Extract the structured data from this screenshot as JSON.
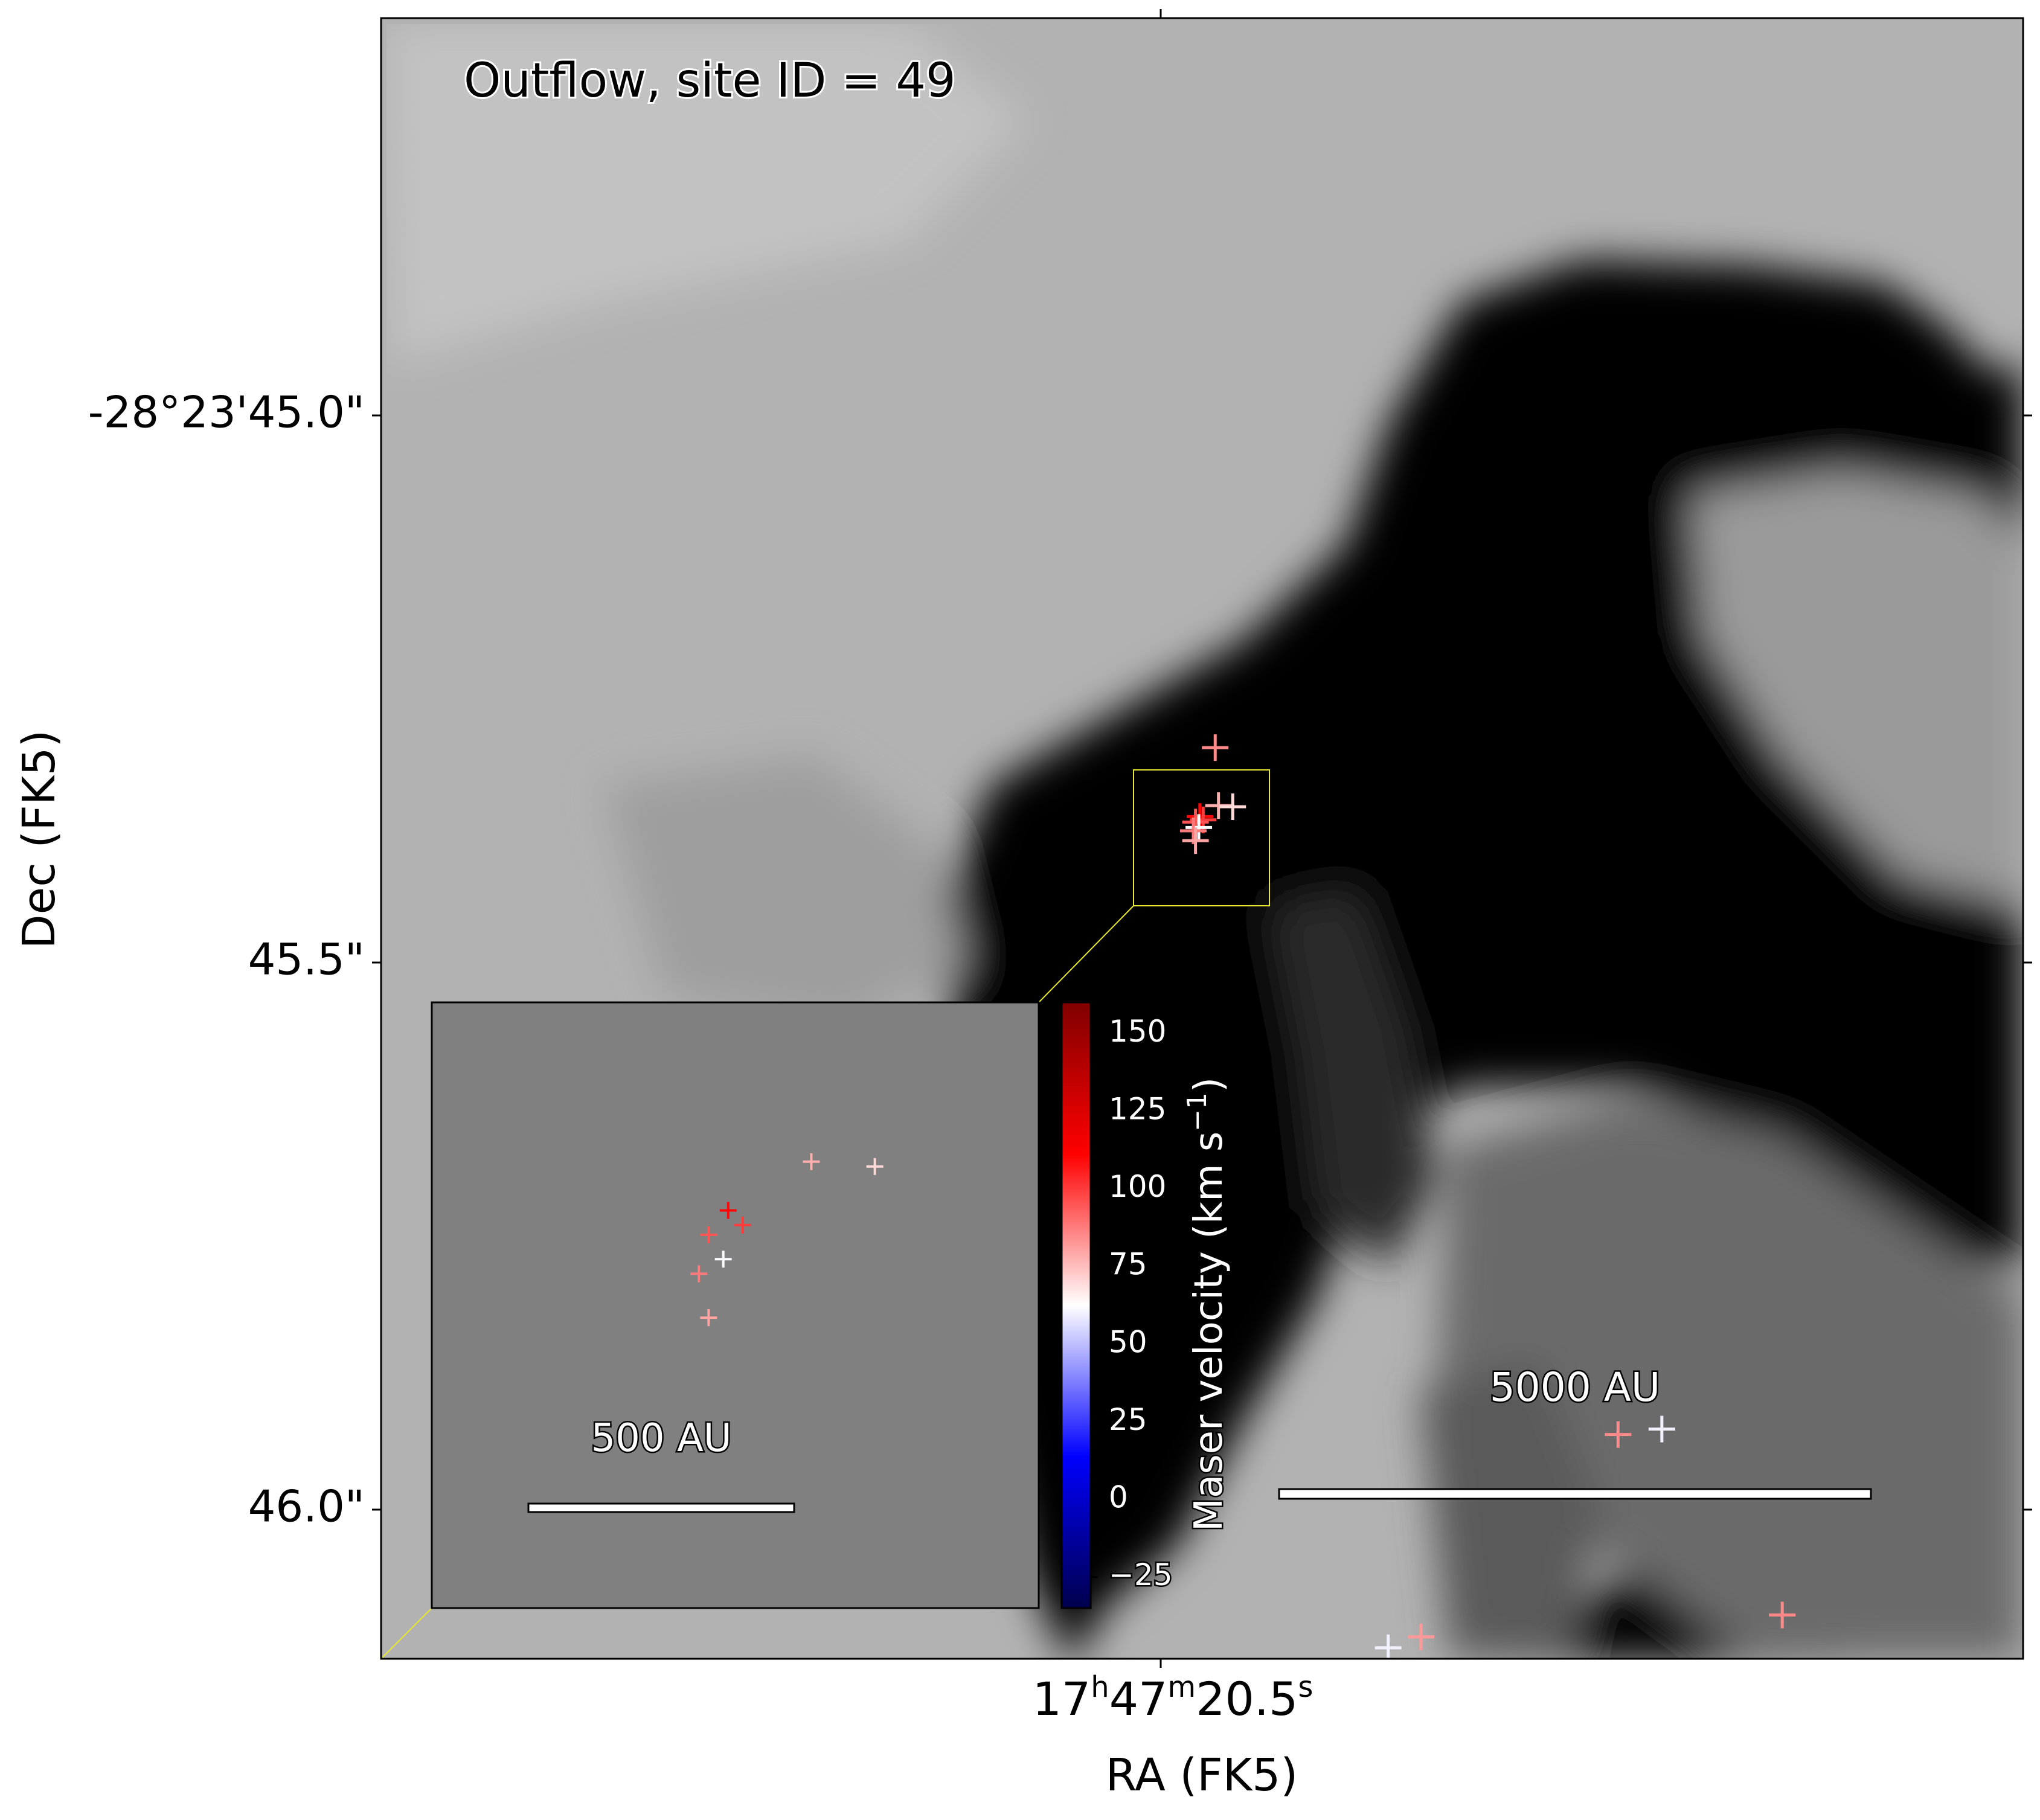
{
  "chart_data": {
    "type": "scatter",
    "title": "Outflow, site ID = 49",
    "xlabel": "RA (FK5)",
    "ylabel": "Dec (FK5)",
    "x_tick": {
      "h": "17",
      "m": "47",
      "s": "20.5"
    },
    "y_ticks": [
      {
        "label": "-28°23'45.0\"",
        "dec_arcsec": 45.0
      },
      {
        "label": "45.5\"",
        "dec_arcsec": 45.5
      },
      {
        "label": "46.0\"",
        "dec_arcsec": 46.0
      }
    ],
    "xlim_offset_arcsec": [
      -0.72,
      0.78
    ],
    "ylim_dec_arcsec": [
      44.64,
      46.14
    ],
    "main_scalebar": {
      "label": "5000 AU"
    },
    "inset": {
      "scalebar": {
        "label": "500 AU"
      }
    },
    "colorbar": {
      "label": "Maser velocity (km s",
      "label_sup": "−1",
      "label_close": ")",
      "range": [
        -35,
        160
      ],
      "ticks": [
        "150",
        "125",
        "100",
        "75",
        "50",
        "25",
        "0",
        "−25"
      ],
      "tick_values": [
        150,
        125,
        100,
        75,
        50,
        25,
        0,
        -25
      ],
      "cmap": "seismic"
    },
    "masers": [
      {
        "dx_arcsec": 0.042,
        "dec_arcsec": 45.307,
        "velocity": 85
      },
      {
        "dx_arcsec": 0.045,
        "dec_arcsec": 45.36,
        "velocity": 78
      },
      {
        "dx_arcsec": 0.058,
        "dec_arcsec": 45.361,
        "velocity": 70
      },
      {
        "dx_arcsec": 0.028,
        "dec_arcsec": 45.37,
        "velocity": 110
      },
      {
        "dx_arcsec": 0.031,
        "dec_arcsec": 45.373,
        "velocity": 100
      },
      {
        "dx_arcsec": 0.024,
        "dec_arcsec": 45.375,
        "velocity": 95
      },
      {
        "dx_arcsec": 0.027,
        "dec_arcsec": 45.38,
        "velocity": 62
      },
      {
        "dx_arcsec": 0.022,
        "dec_arcsec": 45.383,
        "velocity": 88
      },
      {
        "dx_arcsec": 0.024,
        "dec_arcsec": 45.392,
        "velocity": 80
      },
      {
        "dx_arcsec": 0.41,
        "dec_arcsec": 45.935,
        "velocity": 85
      },
      {
        "dx_arcsec": 0.45,
        "dec_arcsec": 45.93,
        "velocity": 60
      },
      {
        "dx_arcsec": 0.23,
        "dec_arcsec": 46.12,
        "velocity": 82
      },
      {
        "dx_arcsec": 0.2,
        "dec_arcsec": 46.13,
        "velocity": 60
      },
      {
        "dx_arcsec": 0.56,
        "dec_arcsec": 46.1,
        "velocity": 85
      }
    ],
    "colors": {
      "zoom_box": "#e8e830",
      "inset_background": "#808080"
    }
  }
}
